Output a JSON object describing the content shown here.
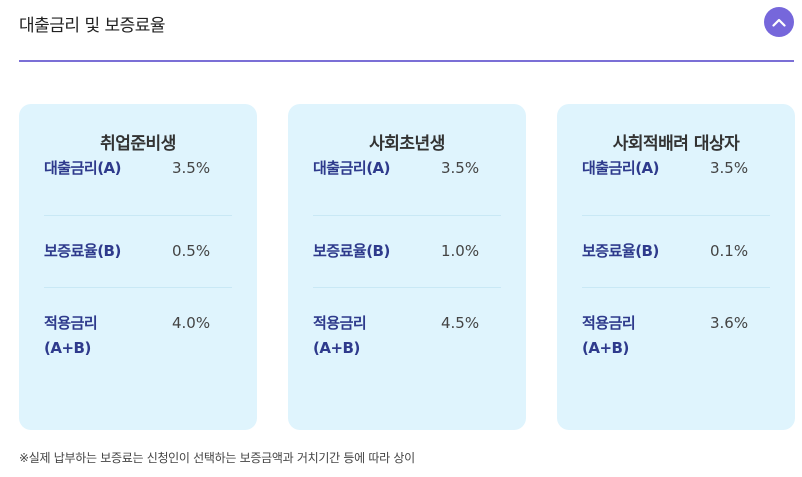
{
  "section": {
    "title": "대출금리 및 보증료율"
  },
  "cards": [
    {
      "title": "취업준비생",
      "rows": [
        {
          "label": "대출금리(A)",
          "value": "3.5%"
        },
        {
          "label": "보증료율(B)",
          "value": "0.5%"
        },
        {
          "label_line1": "적용금리",
          "label_line2": "(A+B)",
          "value": "4.0%"
        }
      ]
    },
    {
      "title": "사회초년생",
      "rows": [
        {
          "label": "대출금리(A)",
          "value": "3.5%"
        },
        {
          "label": "보증료율(B)",
          "value": "1.0%"
        },
        {
          "label_line1": "적용금리",
          "label_line2": "(A+B)",
          "value": "4.5%"
        }
      ]
    },
    {
      "title": "사회적배려 대상자",
      "rows": [
        {
          "label": "대출금리(A)",
          "value": "3.5%"
        },
        {
          "label": "보증료율(B)",
          "value": "0.1%"
        },
        {
          "label_line1": "적용금리",
          "label_line2": "(A+B)",
          "value": "3.6%"
        }
      ]
    }
  ],
  "footnote": "※실제 납부하는 보증료는 신청인이 선택하는 보증금액과 거치기간 등에 따라 상이",
  "colors": {
    "accent": "#7667db",
    "card_background": "#dff4fd",
    "label_text": "#2e3a8c"
  },
  "icons": {
    "collapse": "chevron-up-icon"
  }
}
